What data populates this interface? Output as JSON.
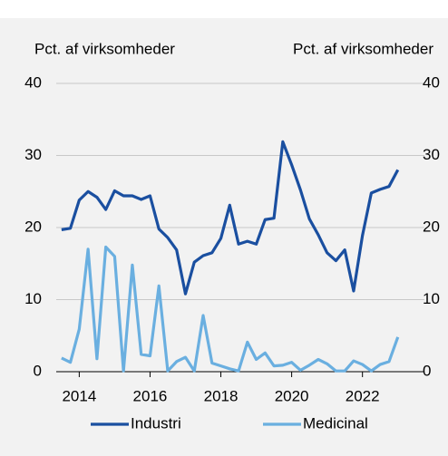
{
  "chart_data": {
    "type": "line",
    "ylabel": "Pct. af virksomheder",
    "y2label": "Pct. af virksomheder",
    "x": [
      2013.5,
      2013.75,
      2014,
      2014.25,
      2014.5,
      2014.75,
      2015,
      2015.25,
      2015.5,
      2015.75,
      2016,
      2016.25,
      2016.5,
      2016.75,
      2017,
      2017.25,
      2017.5,
      2017.75,
      2018,
      2018.25,
      2018.5,
      2018.75,
      2019,
      2019.25,
      2019.5,
      2019.75,
      2020,
      2020.25,
      2020.5,
      2020.75,
      2021,
      2021.25,
      2021.5,
      2021.75,
      2022,
      2022.25,
      2022.5,
      2022.75,
      2023
    ],
    "series": [
      {
        "name": "Industri",
        "color": "#1a4fa0",
        "values": [
          19.7,
          19.9,
          23.8,
          25,
          24.2,
          22.5,
          25.1,
          24.4,
          24.4,
          23.9,
          24.4,
          19.8,
          18.6,
          16.9,
          10.8,
          15.2,
          16.1,
          16.5,
          18.5,
          23.1,
          17.7,
          18.1,
          17.7,
          21.1,
          21.3,
          31.9,
          28.7,
          25.2,
          21.2,
          19,
          16.5,
          15.4,
          16.9,
          11.2,
          18.9,
          24.8,
          25.3,
          25.7,
          28.0
        ]
      },
      {
        "name": "Medicinal",
        "color": "#6aafe0",
        "values": [
          1.9,
          1.3,
          5.9,
          17,
          1.8,
          17.3,
          16,
          0.1,
          14.8,
          2.4,
          2.2,
          11.9,
          0.1,
          1.4,
          2,
          0.1,
          7.8,
          1.2,
          0.8,
          0.4,
          0.1,
          4.1,
          1.7,
          2.6,
          0.8,
          0.9,
          1.3,
          0.2,
          0.9,
          1.7,
          1.1,
          0.1,
          0.1,
          1.5,
          1,
          0.1,
          1,
          1.4,
          4.8
        ]
      }
    ],
    "xlim": [
      2013.35,
      2023.75
    ],
    "xticks": [
      2014,
      2016,
      2018,
      2020,
      2022
    ],
    "ylim": [
      0,
      40
    ],
    "yticks": [
      0,
      10,
      20,
      30,
      40
    ],
    "y2lim": [
      0,
      40
    ],
    "y2ticks": [
      0,
      10,
      20,
      30,
      40
    ],
    "grid": true,
    "legend": "bottom"
  }
}
